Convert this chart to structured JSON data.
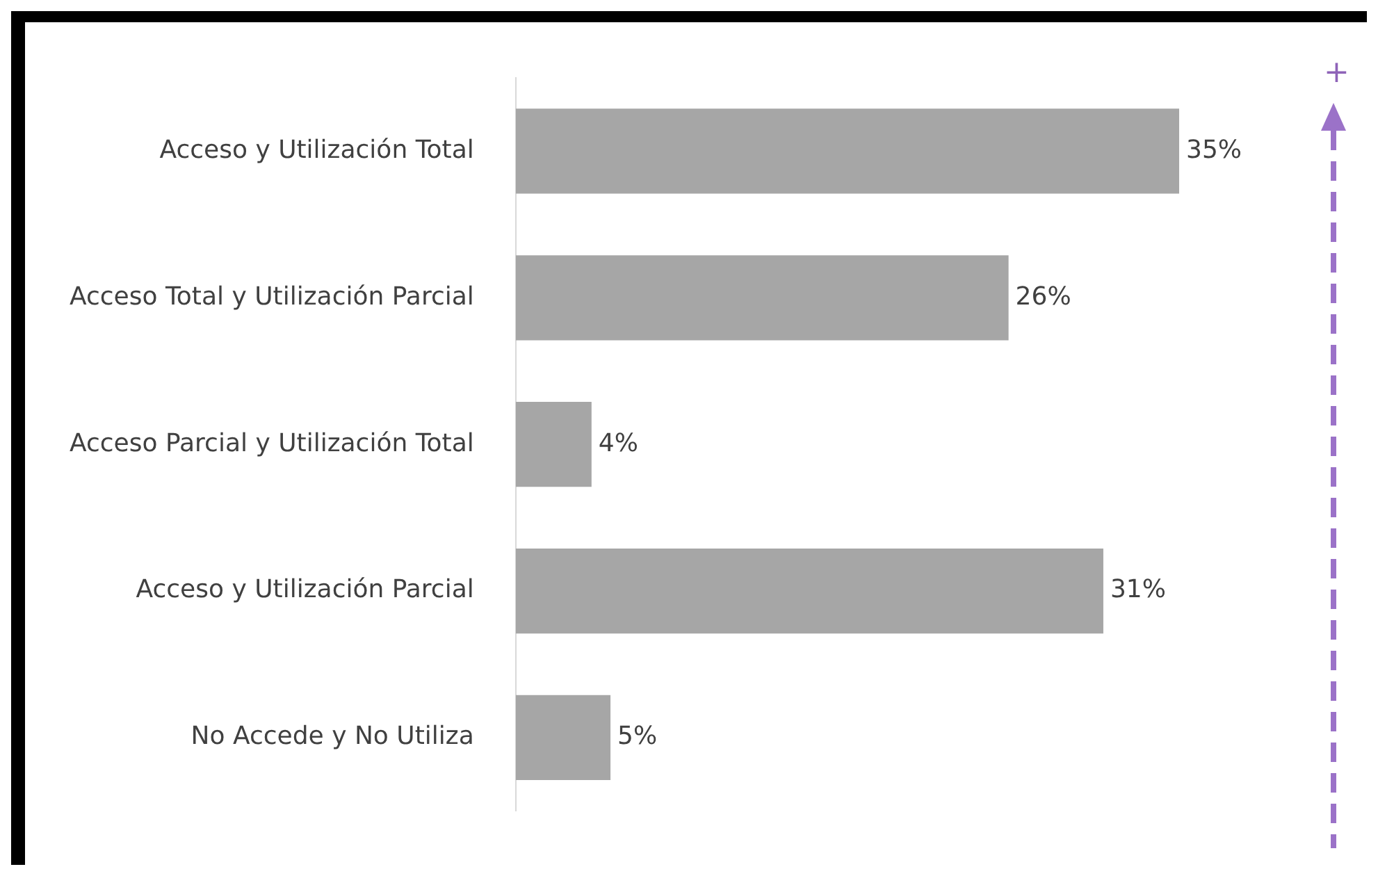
{
  "chart_data": {
    "type": "bar",
    "orientation": "horizontal",
    "categories": [
      "Acceso y Utilización Total",
      "Acceso Total y Utilización Parcial",
      "Acceso Parcial y Utilización Total",
      "Acceso y Utilización Parcial",
      "No Accede y No Utiliza"
    ],
    "values": [
      35,
      26,
      4,
      31,
      5
    ],
    "value_labels": [
      "35%",
      "26%",
      "4%",
      "31%",
      "5%"
    ],
    "color": "#a6a6a6",
    "annotations": [
      "+"
    ]
  }
}
